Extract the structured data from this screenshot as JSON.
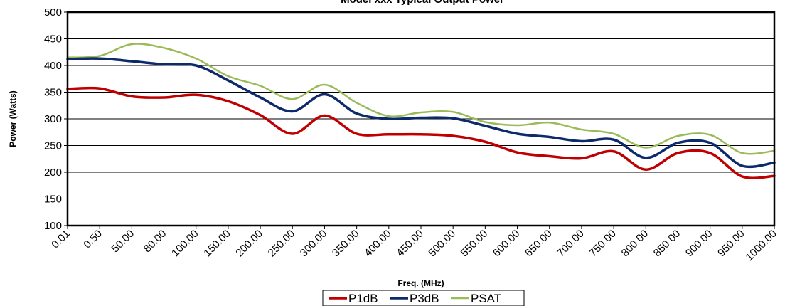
{
  "chart_data": {
    "type": "line",
    "title": "Model xxx Typical Output Power",
    "xlabel": "Freq. (MHz)",
    "ylabel": "Power (Watts)",
    "ylim": [
      100,
      500
    ],
    "yticks": [
      100,
      150,
      200,
      250,
      300,
      350,
      400,
      450,
      500
    ],
    "grid": "horizontal",
    "legend_position": "bottom",
    "categories": [
      "0.01",
      "0.50",
      "50.00",
      "80.00",
      "100.00",
      "150.00",
      "200.00",
      "250.00",
      "300.00",
      "350.00",
      "400.00",
      "450.00",
      "500.00",
      "550.00",
      "600.00",
      "650.00",
      "700.00",
      "750.00",
      "800.00",
      "850.00",
      "900.00",
      "950.00",
      "1000.00"
    ],
    "series": [
      {
        "name": "P1dB",
        "color": "#c00000",
        "values": [
          356,
          357,
          342,
          340,
          345,
          333,
          307,
          272,
          306,
          272,
          271,
          271,
          268,
          257,
          237,
          230,
          226,
          239,
          205,
          236,
          236,
          192,
          193
        ]
      },
      {
        "name": "P3dB",
        "color": "#0d2a6b",
        "values": [
          412,
          413,
          408,
          402,
          400,
          372,
          340,
          314,
          346,
          310,
          300,
          302,
          301,
          287,
          272,
          266,
          258,
          261,
          227,
          255,
          255,
          212,
          218
        ]
      },
      {
        "name": "PSAT",
        "color": "#9bbb59",
        "values": [
          415,
          418,
          440,
          433,
          413,
          380,
          362,
          337,
          364,
          330,
          305,
          312,
          313,
          294,
          288,
          293,
          280,
          272,
          246,
          268,
          270,
          236,
          240
        ]
      }
    ]
  }
}
